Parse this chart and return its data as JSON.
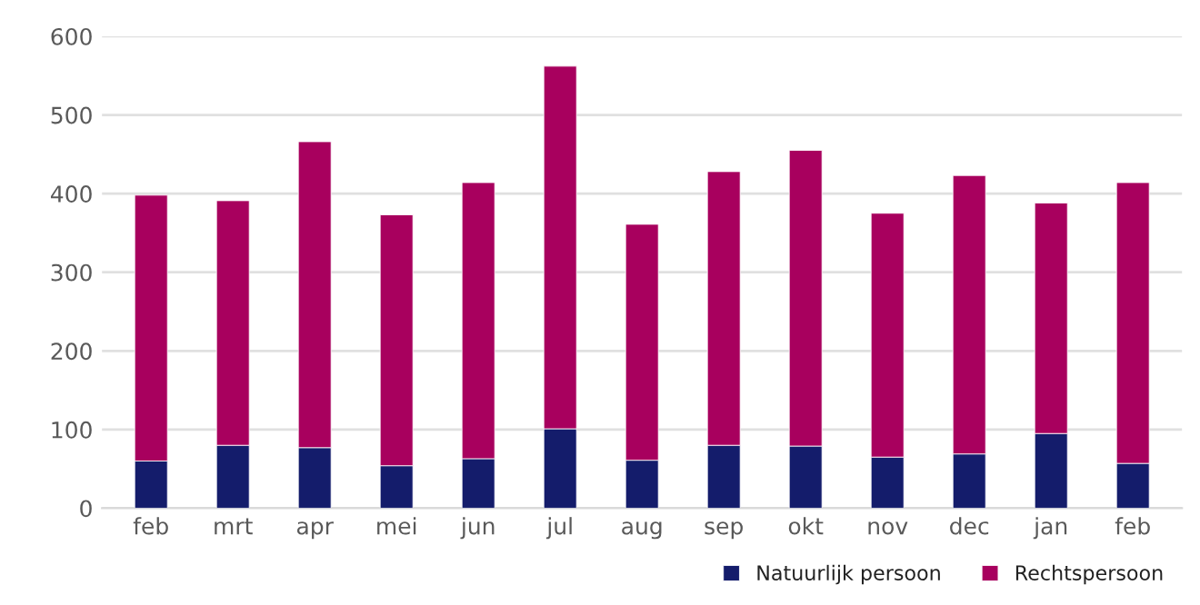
{
  "chart_data": {
    "type": "bar",
    "stacked": true,
    "categories": [
      "feb",
      "mrt",
      "apr",
      "mei",
      "jun",
      "jul",
      "aug",
      "sep",
      "okt",
      "nov",
      "dec",
      "jan",
      "feb"
    ],
    "series": [
      {
        "name": "Natuurlijk persoon",
        "color": "#141c6b",
        "values": [
          60,
          80,
          77,
          54,
          63,
          101,
          61,
          80,
          79,
          65,
          69,
          95,
          57
        ]
      },
      {
        "name": "Rechtspersoon",
        "color": "#a8005e",
        "values": [
          338,
          311,
          389,
          319,
          351,
          461,
          300,
          348,
          376,
          310,
          354,
          293,
          357
        ]
      }
    ],
    "ylim": [
      0,
      600
    ],
    "yticks": [
      0,
      100,
      200,
      300,
      400,
      500,
      600
    ],
    "grid": "y",
    "legend": "bottom right"
  }
}
